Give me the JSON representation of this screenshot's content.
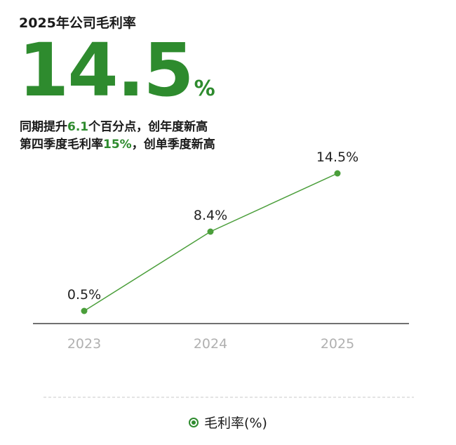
{
  "header": {
    "title": "2025年公司毛利率",
    "big_value": "14.5",
    "big_unit": "%",
    "line1_pre": "同期提升",
    "line1_hl": "6.1",
    "line1_post": "个百分点，创年度新高",
    "line2_pre": "第四季度毛利率",
    "line2_hl": "15%",
    "line2_post": "，创单季度新高"
  },
  "colors": {
    "accent": "#2e8b2e",
    "line": "#4a9e3a",
    "axis": "#1a1a1a",
    "tick": "#b0b0b0"
  },
  "chart_data": {
    "type": "line",
    "categories": [
      "2023",
      "2024",
      "2025"
    ],
    "series": [
      {
        "name": "毛利率(%)",
        "values": [
          0.5,
          8.4,
          14.5
        ],
        "labels": [
          "0.5%",
          "8.4%",
          "14.5%"
        ]
      }
    ],
    "legend": "bottom-center",
    "grid": false
  },
  "legend": {
    "label": "毛利率(%)",
    "icon": "circle-dot-icon"
  }
}
